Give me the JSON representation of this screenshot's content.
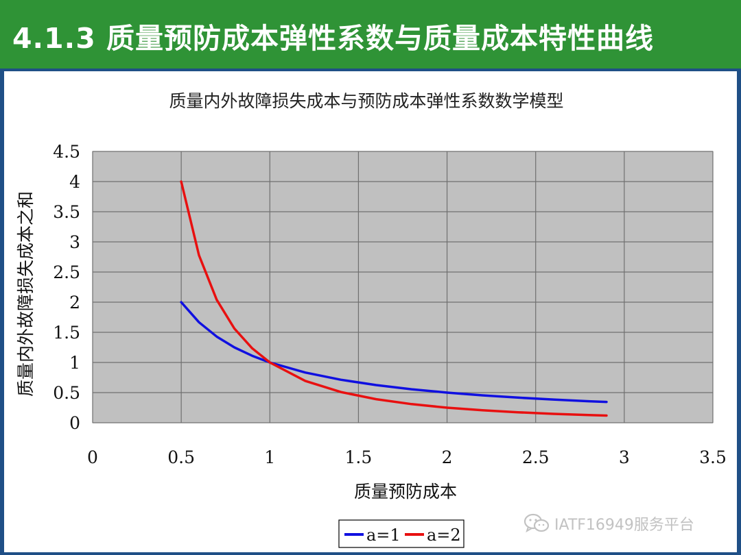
{
  "slide": {
    "title": "4.1.3 质量预防成本弹性系数与质量成本特性曲线"
  },
  "watermark": {
    "text": "IATF16949服务平台",
    "icon": "wechat-icon"
  },
  "colors": {
    "header_bg": "#2f9336",
    "slide_bg": "#1f4f86",
    "plot_bg": "#c0c0c0",
    "series_a1": "#1010e0",
    "series_a2": "#e81010"
  },
  "chart_data": {
    "type": "line",
    "title": "质量内外故障损失成本与预防成本弹性系数数学模型",
    "xlabel": "质量预防成本",
    "ylabel": "质量内外故障损失成本之和",
    "xlim": [
      0,
      3.5
    ],
    "ylim": [
      0,
      4.5
    ],
    "xticks": [
      "0",
      "0.5",
      "1",
      "1.5",
      "2",
      "2.5",
      "3",
      "3.5"
    ],
    "yticks": [
      "0",
      "0.5",
      "1",
      "1.5",
      "2",
      "2.5",
      "3",
      "3.5",
      "4",
      "4.5"
    ],
    "grid": true,
    "legend": "bottom-center",
    "series": [
      {
        "name": "a=1",
        "color": "#1010e0",
        "x": [
          0.5,
          0.6,
          0.7,
          0.8,
          0.9,
          1.0,
          1.2,
          1.4,
          1.6,
          1.8,
          2.0,
          2.2,
          2.4,
          2.6,
          2.8,
          2.9
        ],
        "y": [
          2.0,
          1.667,
          1.429,
          1.25,
          1.111,
          1.0,
          0.833,
          0.714,
          0.625,
          0.556,
          0.5,
          0.455,
          0.417,
          0.385,
          0.357,
          0.345
        ]
      },
      {
        "name": "a=2",
        "color": "#e81010",
        "x": [
          0.5,
          0.6,
          0.7,
          0.8,
          0.9,
          1.0,
          1.2,
          1.4,
          1.6,
          1.8,
          2.0,
          2.2,
          2.4,
          2.6,
          2.8,
          2.9
        ],
        "y": [
          4.0,
          2.778,
          2.041,
          1.563,
          1.235,
          1.0,
          0.694,
          0.51,
          0.391,
          0.309,
          0.25,
          0.207,
          0.174,
          0.148,
          0.128,
          0.119
        ]
      }
    ]
  }
}
